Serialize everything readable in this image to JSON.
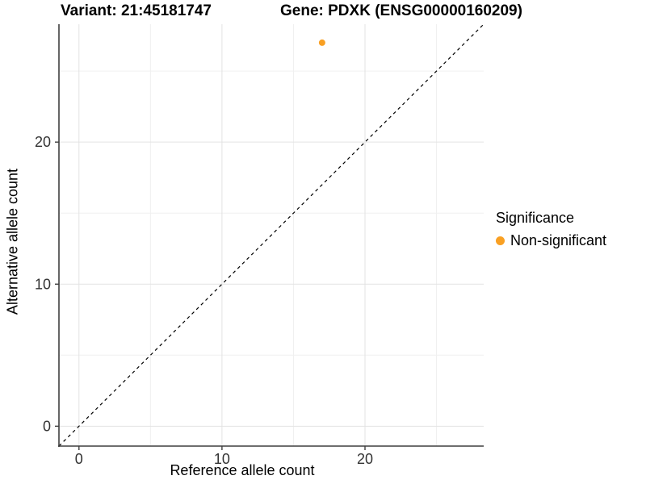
{
  "header": {
    "variant_title": "Variant: 21:45181747",
    "gene_title": "Gene: PDXK (ENSG00000160209)"
  },
  "legend": {
    "title": "Significance",
    "items": [
      {
        "label": "Non-significant",
        "color": "#F9A023"
      }
    ]
  },
  "colors": {
    "background": "#ffffff",
    "grid_major": "#e3e3e3",
    "grid_minor": "#f0f0f0",
    "axis_line": "#3f3f3f",
    "tick_mark": "#3f3f3f",
    "tick_text": "#333333",
    "point": "#F9A023",
    "identity_line": "#000000"
  },
  "chart_data": {
    "type": "scatter",
    "title": "Variant: 21:45181747 / Gene: PDXK (ENSG00000160209)",
    "xlabel": "Reference allele count",
    "ylabel": "Alternative allele count",
    "xlim": [
      -1.4,
      28.3
    ],
    "ylim": [
      -1.4,
      28.3
    ],
    "x_ticks": [
      0,
      10,
      20
    ],
    "y_ticks": [
      0,
      10,
      20
    ],
    "x_minor_ticks": [
      5,
      15,
      25
    ],
    "y_minor_ticks": [
      5,
      15,
      25
    ],
    "grid": "major+minor",
    "legend_position": "right",
    "legend_title": "Significance",
    "series": [
      {
        "name": "Non-significant",
        "color": "#F9A023",
        "points": [
          {
            "x": 17,
            "y": 27
          }
        ]
      }
    ],
    "reference_line": {
      "type": "identity",
      "equation": "y = x",
      "style": "dashed",
      "color": "#000000"
    }
  }
}
